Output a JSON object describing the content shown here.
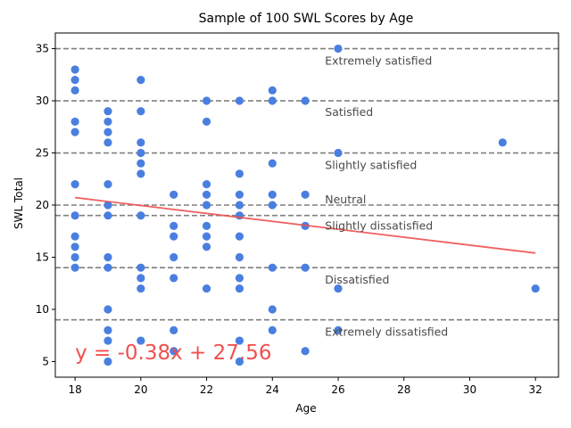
{
  "chart_data": {
    "type": "scatter",
    "title": "Sample of 100 SWL Scores by Age",
    "xlabel": "Age",
    "ylabel": "SWL Total",
    "xlim": [
      17.4,
      32.7
    ],
    "ylim": [
      3.5,
      36.5
    ],
    "xticks": [
      18,
      20,
      22,
      24,
      26,
      28,
      30,
      32
    ],
    "yticks": [
      5,
      10,
      15,
      20,
      25,
      30,
      35
    ],
    "grid": false,
    "point_color": "#4a7fe0",
    "points": [
      {
        "x": 18,
        "y": 33
      },
      {
        "x": 18,
        "y": 32
      },
      {
        "x": 18,
        "y": 31
      },
      {
        "x": 18,
        "y": 28
      },
      {
        "x": 18,
        "y": 27
      },
      {
        "x": 18,
        "y": 22
      },
      {
        "x": 18,
        "y": 19
      },
      {
        "x": 18,
        "y": 17
      },
      {
        "x": 18,
        "y": 16
      },
      {
        "x": 18,
        "y": 15
      },
      {
        "x": 18,
        "y": 14
      },
      {
        "x": 19,
        "y": 29
      },
      {
        "x": 19,
        "y": 28
      },
      {
        "x": 19,
        "y": 27
      },
      {
        "x": 19,
        "y": 26
      },
      {
        "x": 19,
        "y": 22
      },
      {
        "x": 19,
        "y": 20
      },
      {
        "x": 19,
        "y": 19
      },
      {
        "x": 19,
        "y": 15
      },
      {
        "x": 19,
        "y": 14
      },
      {
        "x": 19,
        "y": 10
      },
      {
        "x": 19,
        "y": 8
      },
      {
        "x": 19,
        "y": 7
      },
      {
        "x": 19,
        "y": 5
      },
      {
        "x": 20,
        "y": 32
      },
      {
        "x": 20,
        "y": 29
      },
      {
        "x": 20,
        "y": 26
      },
      {
        "x": 20,
        "y": 25
      },
      {
        "x": 20,
        "y": 24
      },
      {
        "x": 20,
        "y": 23
      },
      {
        "x": 20,
        "y": 19
      },
      {
        "x": 20,
        "y": 14
      },
      {
        "x": 20,
        "y": 13
      },
      {
        "x": 20,
        "y": 12
      },
      {
        "x": 20,
        "y": 7
      },
      {
        "x": 21,
        "y": 21
      },
      {
        "x": 21,
        "y": 18
      },
      {
        "x": 21,
        "y": 17
      },
      {
        "x": 21,
        "y": 15
      },
      {
        "x": 21,
        "y": 13
      },
      {
        "x": 21,
        "y": 8
      },
      {
        "x": 21,
        "y": 6
      },
      {
        "x": 22,
        "y": 30
      },
      {
        "x": 22,
        "y": 28
      },
      {
        "x": 22,
        "y": 22
      },
      {
        "x": 22,
        "y": 21
      },
      {
        "x": 22,
        "y": 20
      },
      {
        "x": 22,
        "y": 18
      },
      {
        "x": 22,
        "y": 17
      },
      {
        "x": 22,
        "y": 16
      },
      {
        "x": 22,
        "y": 12
      },
      {
        "x": 23,
        "y": 30
      },
      {
        "x": 23,
        "y": 23
      },
      {
        "x": 23,
        "y": 21
      },
      {
        "x": 23,
        "y": 20
      },
      {
        "x": 23,
        "y": 19
      },
      {
        "x": 23,
        "y": 17
      },
      {
        "x": 23,
        "y": 15
      },
      {
        "x": 23,
        "y": 13
      },
      {
        "x": 23,
        "y": 12
      },
      {
        "x": 23,
        "y": 7
      },
      {
        "x": 23,
        "y": 5
      },
      {
        "x": 24,
        "y": 31
      },
      {
        "x": 24,
        "y": 30
      },
      {
        "x": 24,
        "y": 24
      },
      {
        "x": 24,
        "y": 21
      },
      {
        "x": 24,
        "y": 20
      },
      {
        "x": 24,
        "y": 14
      },
      {
        "x": 24,
        "y": 10
      },
      {
        "x": 24,
        "y": 8
      },
      {
        "x": 25,
        "y": 30
      },
      {
        "x": 25,
        "y": 21
      },
      {
        "x": 25,
        "y": 18
      },
      {
        "x": 25,
        "y": 14
      },
      {
        "x": 25,
        "y": 6
      },
      {
        "x": 26,
        "y": 35
      },
      {
        "x": 26,
        "y": 25
      },
      {
        "x": 26,
        "y": 12
      },
      {
        "x": 26,
        "y": 8
      },
      {
        "x": 31,
        "y": 26
      },
      {
        "x": 32,
        "y": 12
      }
    ],
    "regression": {
      "slope": -0.38,
      "intercept": 27.56,
      "x_range": [
        18,
        32
      ],
      "color": "#f05050",
      "equation_label": "y = -0.38x + 27.56",
      "label_position": [
        18,
        5.2
      ]
    },
    "reference_lines": {
      "color": "#808080",
      "values": [
        35,
        30,
        25,
        20,
        19,
        14,
        9
      ]
    },
    "band_labels": [
      {
        "text": "Extremely satisfied",
        "x": 25.6,
        "y": 33.8
      },
      {
        "text": "Satisfied",
        "x": 25.6,
        "y": 28.9
      },
      {
        "text": "Slightly satisfied",
        "x": 25.6,
        "y": 23.8
      },
      {
        "text": "Neutral",
        "x": 25.6,
        "y": 20.5
      },
      {
        "text": "Slightly dissatisfied",
        "x": 25.6,
        "y": 18.0
      },
      {
        "text": "Dissatisfied",
        "x": 25.6,
        "y": 12.8
      },
      {
        "text": "Extremely dissatisfied",
        "x": 25.6,
        "y": 7.8
      }
    ]
  }
}
